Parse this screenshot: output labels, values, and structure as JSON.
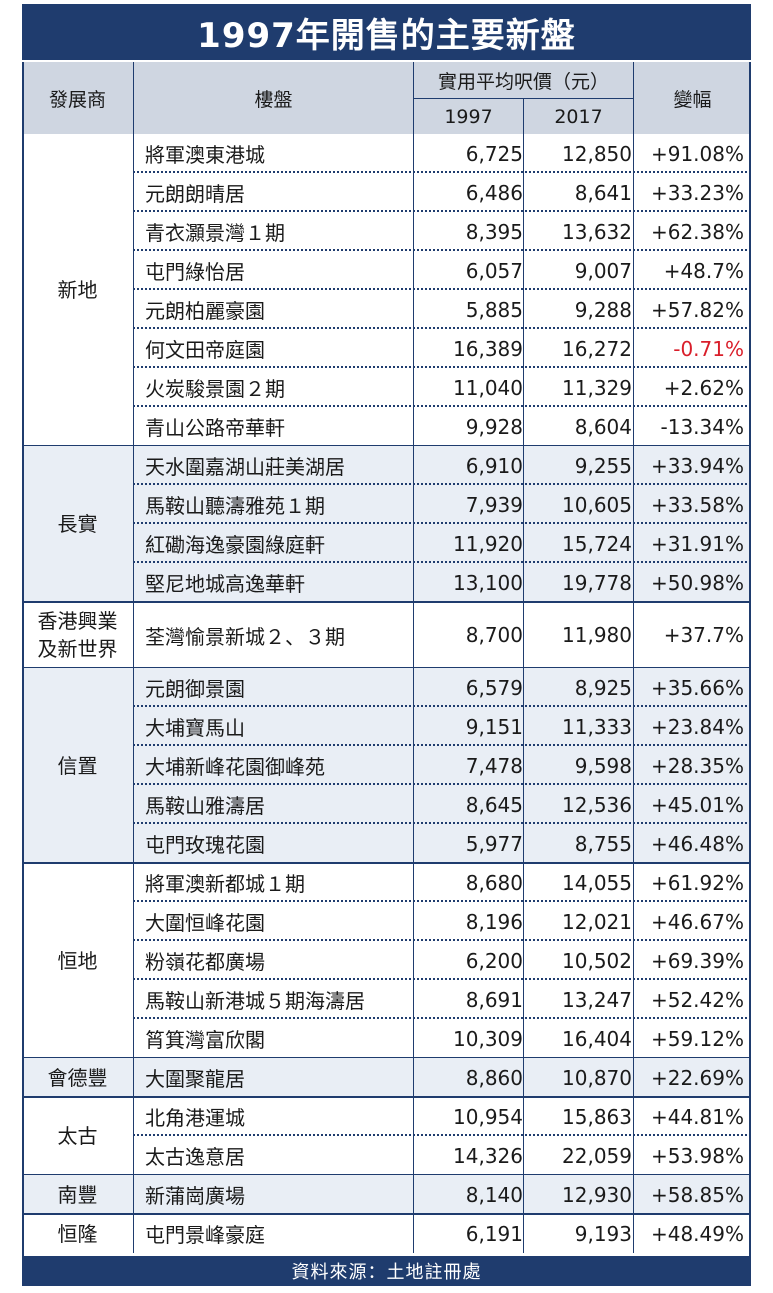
{
  "title": "1997年開售的主要新盤",
  "header": {
    "developer": "發展商",
    "estate": "樓盤",
    "price_group": "實用平均呎價（元）",
    "year1": "1997",
    "year2": "2017",
    "change": "變幅"
  },
  "groups": [
    {
      "developer": "新地",
      "shaded": false,
      "rows": [
        {
          "estate": "將軍澳東港城",
          "p1997": "6,725",
          "p2017": "12,850",
          "change": "+91.08%"
        },
        {
          "estate": "元朗朗晴居",
          "p1997": "6,486",
          "p2017": "8,641",
          "change": "+33.23%"
        },
        {
          "estate": "青衣灝景灣１期",
          "p1997": "8,395",
          "p2017": "13,632",
          "change": "+62.38%"
        },
        {
          "estate": "屯門綠怡居",
          "p1997": "6,057",
          "p2017": "9,007",
          "change": "+48.7%"
        },
        {
          "estate": "元朗柏麗豪園",
          "p1997": "5,885",
          "p2017": "9,288",
          "change": "+57.82%"
        },
        {
          "estate": "何文田帝庭園",
          "p1997": "16,389",
          "p2017": "16,272",
          "change": "-0.71%",
          "negative": true
        },
        {
          "estate": "火炭駿景園２期",
          "p1997": "11,040",
          "p2017": "11,329",
          "change": "+2.62%"
        },
        {
          "estate": "青山公路帝華軒",
          "p1997": "9,928",
          "p2017": "8,604",
          "change": "-13.34%"
        }
      ]
    },
    {
      "developer": "長實",
      "shaded": true,
      "rows": [
        {
          "estate": "天水圍嘉湖山莊美湖居",
          "p1997": "6,910",
          "p2017": "9,255",
          "change": "+33.94%"
        },
        {
          "estate": "馬鞍山聽濤雅苑１期",
          "p1997": "7,939",
          "p2017": "10,605",
          "change": "+33.58%"
        },
        {
          "estate": "紅磡海逸豪園綠庭軒",
          "p1997": "11,920",
          "p2017": "15,724",
          "change": "+31.91%"
        },
        {
          "estate": "堅尼地城高逸華軒",
          "p1997": "13,100",
          "p2017": "19,778",
          "change": "+50.98%"
        }
      ]
    },
    {
      "developer": "香港興業\n及新世界",
      "shaded": false,
      "tall": true,
      "rows": [
        {
          "estate": "荃灣愉景新城２、３期",
          "p1997": "8,700",
          "p2017": "11,980",
          "change": "+37.7%"
        }
      ]
    },
    {
      "developer": "信置",
      "shaded": true,
      "rows": [
        {
          "estate": "元朗御景園",
          "p1997": "6,579",
          "p2017": "8,925",
          "change": "+35.66%"
        },
        {
          "estate": "大埔寶馬山",
          "p1997": "9,151",
          "p2017": "11,333",
          "change": "+23.84%"
        },
        {
          "estate": "大埔新峰花園御峰苑",
          "p1997": "7,478",
          "p2017": "9,598",
          "change": "+28.35%"
        },
        {
          "estate": "馬鞍山雅濤居",
          "p1997": "8,645",
          "p2017": "12,536",
          "change": "+45.01%"
        },
        {
          "estate": "屯門玫瑰花園",
          "p1997": "5,977",
          "p2017": "8,755",
          "change": "+46.48%"
        }
      ]
    },
    {
      "developer": "恒地",
      "shaded": false,
      "rows": [
        {
          "estate": "將軍澳新都城１期",
          "p1997": "8,680",
          "p2017": "14,055",
          "change": "+61.92%"
        },
        {
          "estate": "大圍恒峰花園",
          "p1997": "8,196",
          "p2017": "12,021",
          "change": "+46.67%"
        },
        {
          "estate": "粉嶺花都廣場",
          "p1997": "6,200",
          "p2017": "10,502",
          "change": "+69.39%"
        },
        {
          "estate": "馬鞍山新港城５期海濤居",
          "p1997": "8,691",
          "p2017": "13,247",
          "change": "+52.42%"
        },
        {
          "estate": "筲箕灣富欣閣",
          "p1997": "10,309",
          "p2017": "16,404",
          "change": "+59.12%"
        }
      ]
    },
    {
      "developer": "會德豐",
      "shaded": true,
      "rows": [
        {
          "estate": "大圍聚龍居",
          "p1997": "8,860",
          "p2017": "10,870",
          "change": "+22.69%"
        }
      ]
    },
    {
      "developer": "太古",
      "shaded": false,
      "rows": [
        {
          "estate": "北角港運城",
          "p1997": "10,954",
          "p2017": "15,863",
          "change": "+44.81%"
        },
        {
          "estate": "太古逸意居",
          "p1997": "14,326",
          "p2017": "22,059",
          "change": "+53.98%"
        }
      ]
    },
    {
      "developer": "南豐",
      "shaded": true,
      "rows": [
        {
          "estate": "新蒲崗廣場",
          "p1997": "8,140",
          "p2017": "12,930",
          "change": "+58.85%"
        }
      ]
    },
    {
      "developer": "恒隆",
      "shaded": false,
      "rows": [
        {
          "estate": "屯門景峰豪庭",
          "p1997": "6,191",
          "p2017": "9,193",
          "change": "+48.49%"
        }
      ]
    }
  ],
  "footer": "資料來源：土地註冊處",
  "colors": {
    "navy": "#1f3c6e",
    "header_bg": "#cfd6e1",
    "shade": "#e9eef5",
    "negative": "#d91e2a"
  }
}
